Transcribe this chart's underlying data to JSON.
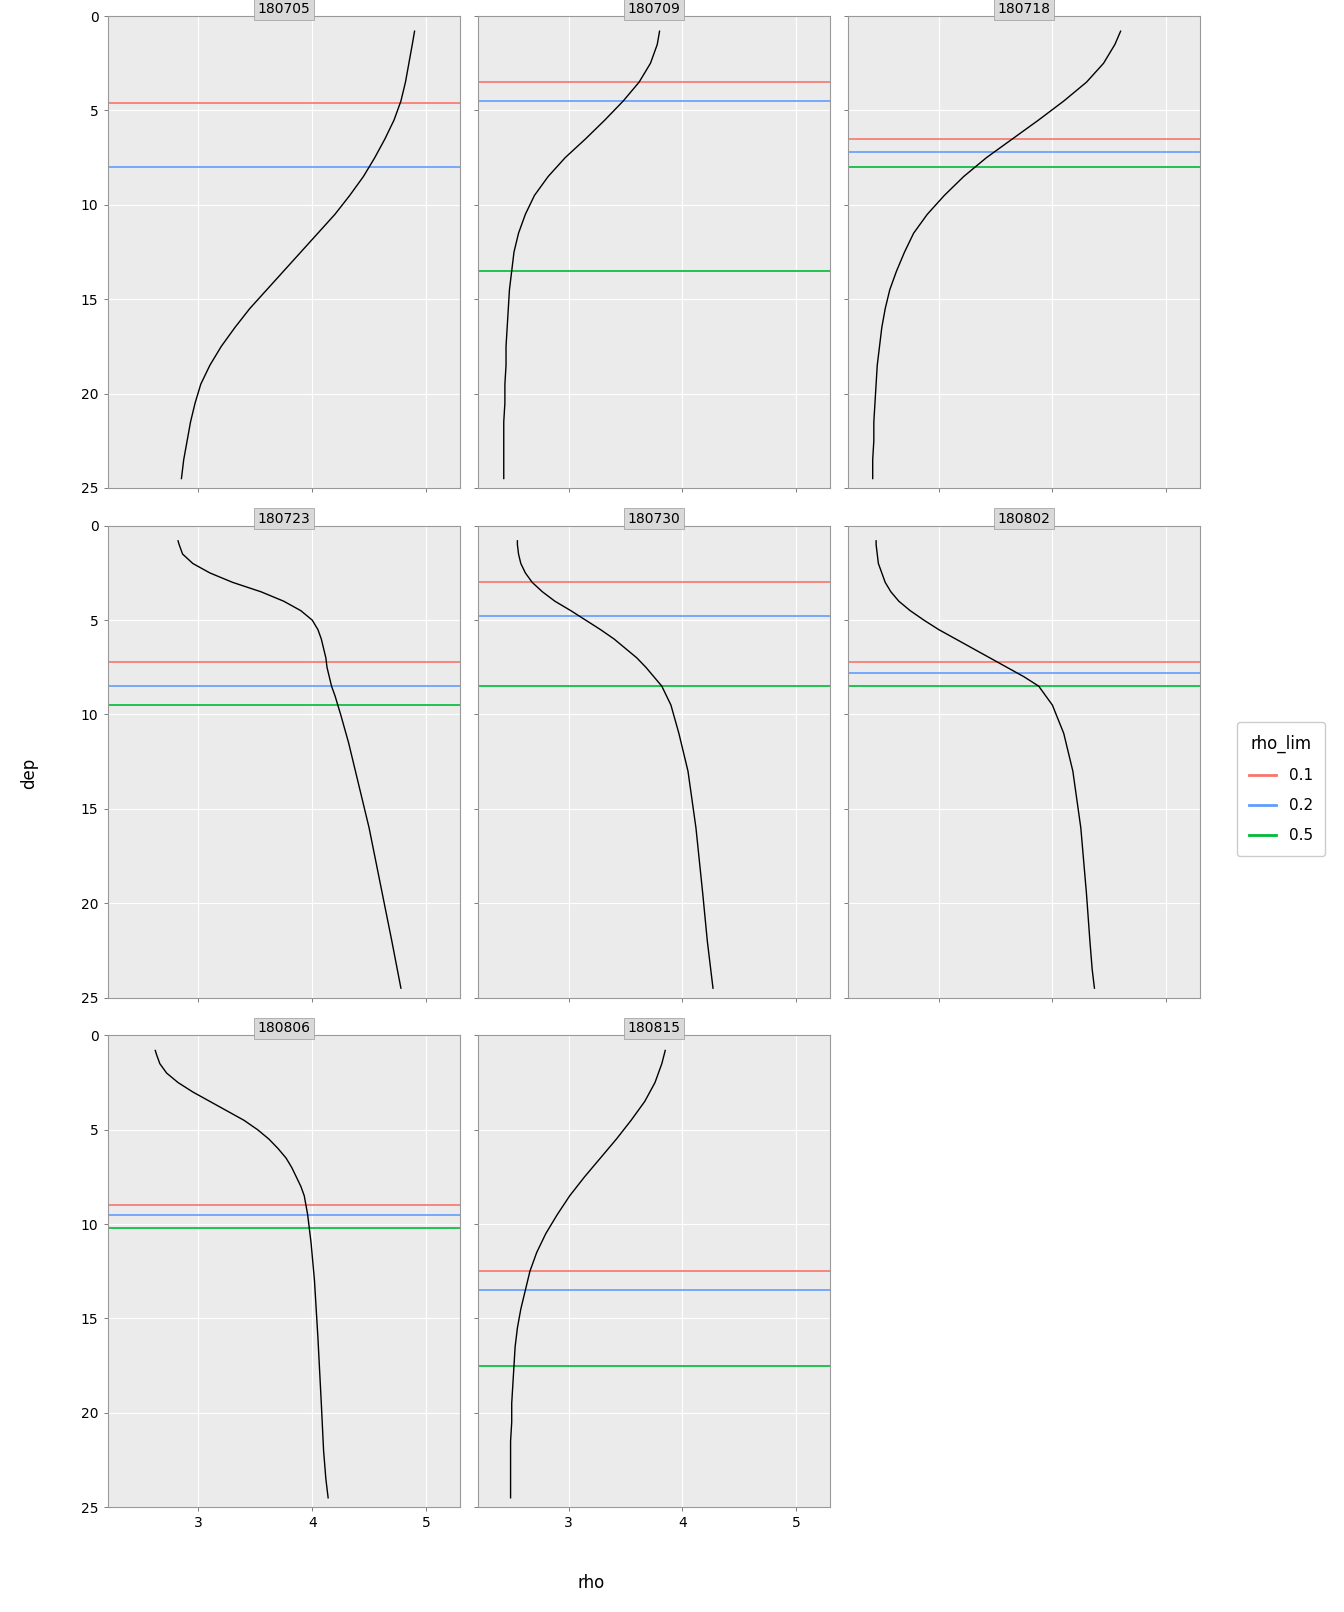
{
  "panels": [
    {
      "id": "180705",
      "curve_rho": [
        4.9,
        4.88,
        4.85,
        4.82,
        4.78,
        4.72,
        4.64,
        4.55,
        4.45,
        4.33,
        4.2,
        4.05,
        3.9,
        3.75,
        3.6,
        3.45,
        3.32,
        3.2,
        3.1,
        3.02,
        2.97,
        2.93,
        2.9,
        2.87,
        2.85
      ],
      "curve_dep": [
        0.8,
        1.5,
        2.5,
        3.5,
        4.5,
        5.5,
        6.5,
        7.5,
        8.5,
        9.5,
        10.5,
        11.5,
        12.5,
        13.5,
        14.5,
        15.5,
        16.5,
        17.5,
        18.5,
        19.5,
        20.5,
        21.5,
        22.5,
        23.5,
        24.5
      ],
      "mld_red": 4.6,
      "mld_blue": 8.0,
      "mld_green": null
    },
    {
      "id": "180709",
      "curve_rho": [
        3.8,
        3.78,
        3.72,
        3.62,
        3.48,
        3.32,
        3.15,
        2.97,
        2.82,
        2.7,
        2.62,
        2.56,
        2.52,
        2.5,
        2.48,
        2.47,
        2.46,
        2.45,
        2.45,
        2.44,
        2.44,
        2.43,
        2.43,
        2.43,
        2.43
      ],
      "curve_dep": [
        0.8,
        1.5,
        2.5,
        3.5,
        4.5,
        5.5,
        6.5,
        7.5,
        8.5,
        9.5,
        10.5,
        11.5,
        12.5,
        13.5,
        14.5,
        15.5,
        16.5,
        17.5,
        18.5,
        19.5,
        20.5,
        21.5,
        22.5,
        23.5,
        24.5
      ],
      "mld_red": 3.5,
      "mld_blue": 4.5,
      "mld_green": 13.5
    },
    {
      "id": "180718",
      "curve_rho": [
        4.6,
        4.55,
        4.45,
        4.3,
        4.1,
        3.88,
        3.65,
        3.42,
        3.22,
        3.05,
        2.9,
        2.78,
        2.7,
        2.63,
        2.57,
        2.53,
        2.5,
        2.48,
        2.46,
        2.45,
        2.44,
        2.43,
        2.43,
        2.42,
        2.42
      ],
      "curve_dep": [
        0.8,
        1.5,
        2.5,
        3.5,
        4.5,
        5.5,
        6.5,
        7.5,
        8.5,
        9.5,
        10.5,
        11.5,
        12.5,
        13.5,
        14.5,
        15.5,
        16.5,
        17.5,
        18.5,
        19.5,
        20.5,
        21.5,
        22.5,
        23.5,
        24.5
      ],
      "mld_red": 6.5,
      "mld_blue": 7.2,
      "mld_green": 8.0
    },
    {
      "id": "180723",
      "curve_rho": [
        2.82,
        2.83,
        2.86,
        2.95,
        3.1,
        3.3,
        3.55,
        3.75,
        3.9,
        4.0,
        4.05,
        4.08,
        4.1,
        4.12,
        4.13,
        4.15,
        4.17,
        4.2,
        4.25,
        4.32,
        4.4,
        4.5,
        4.6,
        4.7,
        4.78
      ],
      "curve_dep": [
        0.8,
        1.0,
        1.5,
        2.0,
        2.5,
        3.0,
        3.5,
        4.0,
        4.5,
        5.0,
        5.5,
        6.0,
        6.5,
        7.0,
        7.5,
        8.0,
        8.5,
        9.0,
        10.0,
        11.5,
        13.5,
        16.0,
        19.0,
        22.0,
        24.5
      ],
      "mld_red": 7.2,
      "mld_blue": 8.5,
      "mld_green": 9.5
    },
    {
      "id": "180730",
      "curve_rho": [
        2.55,
        2.55,
        2.56,
        2.58,
        2.62,
        2.68,
        2.77,
        2.88,
        3.02,
        3.15,
        3.28,
        3.4,
        3.5,
        3.6,
        3.68,
        3.75,
        3.82,
        3.9,
        3.97,
        4.05,
        4.12,
        4.18,
        4.22,
        4.25,
        4.27
      ],
      "curve_dep": [
        0.8,
        1.0,
        1.5,
        2.0,
        2.5,
        3.0,
        3.5,
        4.0,
        4.5,
        5.0,
        5.5,
        6.0,
        6.5,
        7.0,
        7.5,
        8.0,
        8.5,
        9.5,
        11.0,
        13.0,
        16.0,
        19.5,
        22.0,
        23.5,
        24.5
      ],
      "mld_red": 3.0,
      "mld_blue": 4.8,
      "mld_green": 8.5
    },
    {
      "id": "180802",
      "curve_rho": [
        2.45,
        2.45,
        2.46,
        2.47,
        2.5,
        2.53,
        2.58,
        2.65,
        2.75,
        2.87,
        3.0,
        3.15,
        3.3,
        3.45,
        3.6,
        3.75,
        3.88,
        4.0,
        4.1,
        4.18,
        4.25,
        4.3,
        4.33,
        4.35,
        4.37
      ],
      "curve_dep": [
        0.8,
        1.0,
        1.5,
        2.0,
        2.5,
        3.0,
        3.5,
        4.0,
        4.5,
        5.0,
        5.5,
        6.0,
        6.5,
        7.0,
        7.5,
        8.0,
        8.5,
        9.5,
        11.0,
        13.0,
        16.0,
        19.5,
        22.0,
        23.5,
        24.5
      ],
      "mld_red": 7.2,
      "mld_blue": 7.8,
      "mld_green": 8.5
    },
    {
      "id": "180806",
      "curve_rho": [
        2.62,
        2.63,
        2.66,
        2.72,
        2.82,
        2.95,
        3.1,
        3.25,
        3.4,
        3.52,
        3.62,
        3.7,
        3.77,
        3.82,
        3.86,
        3.9,
        3.93,
        3.96,
        3.99,
        4.02,
        4.05,
        4.08,
        4.1,
        4.12,
        4.14
      ],
      "curve_dep": [
        0.8,
        1.0,
        1.5,
        2.0,
        2.5,
        3.0,
        3.5,
        4.0,
        4.5,
        5.0,
        5.5,
        6.0,
        6.5,
        7.0,
        7.5,
        8.0,
        8.5,
        9.5,
        11.0,
        13.0,
        16.0,
        19.5,
        22.0,
        23.5,
        24.5
      ],
      "mld_red": 9.0,
      "mld_blue": 9.5,
      "mld_green": 10.2
    },
    {
      "id": "180815",
      "curve_rho": [
        3.85,
        3.82,
        3.76,
        3.67,
        3.55,
        3.42,
        3.28,
        3.14,
        3.01,
        2.9,
        2.8,
        2.72,
        2.66,
        2.62,
        2.58,
        2.55,
        2.53,
        2.52,
        2.51,
        2.5,
        2.5,
        2.49,
        2.49,
        2.49,
        2.49
      ],
      "curve_dep": [
        0.8,
        1.5,
        2.5,
        3.5,
        4.5,
        5.5,
        6.5,
        7.5,
        8.5,
        9.5,
        10.5,
        11.5,
        12.5,
        13.5,
        14.5,
        15.5,
        16.5,
        17.5,
        18.5,
        19.5,
        20.5,
        21.5,
        22.5,
        23.5,
        24.5
      ],
      "mld_red": 12.5,
      "mld_blue": 13.5,
      "mld_green": 17.5
    }
  ],
  "xlim": [
    2.2,
    5.3
  ],
  "xticks": [
    3,
    4,
    5
  ],
  "ylim": [
    25,
    0
  ],
  "yticks": [
    0,
    5,
    10,
    15,
    20,
    25
  ],
  "xlabel": "rho",
  "ylabel": "dep",
  "color_red": "#F8766D",
  "color_blue": "#619CFF",
  "color_green": "#00BA38",
  "legend_title": "rho_lim",
  "legend_labels": [
    "0.1",
    "0.2",
    "0.5"
  ],
  "panel_bg": "#EBEBEB",
  "grid_color": "#FFFFFF",
  "title_bg": "#D9D9D9",
  "ncols": 3
}
